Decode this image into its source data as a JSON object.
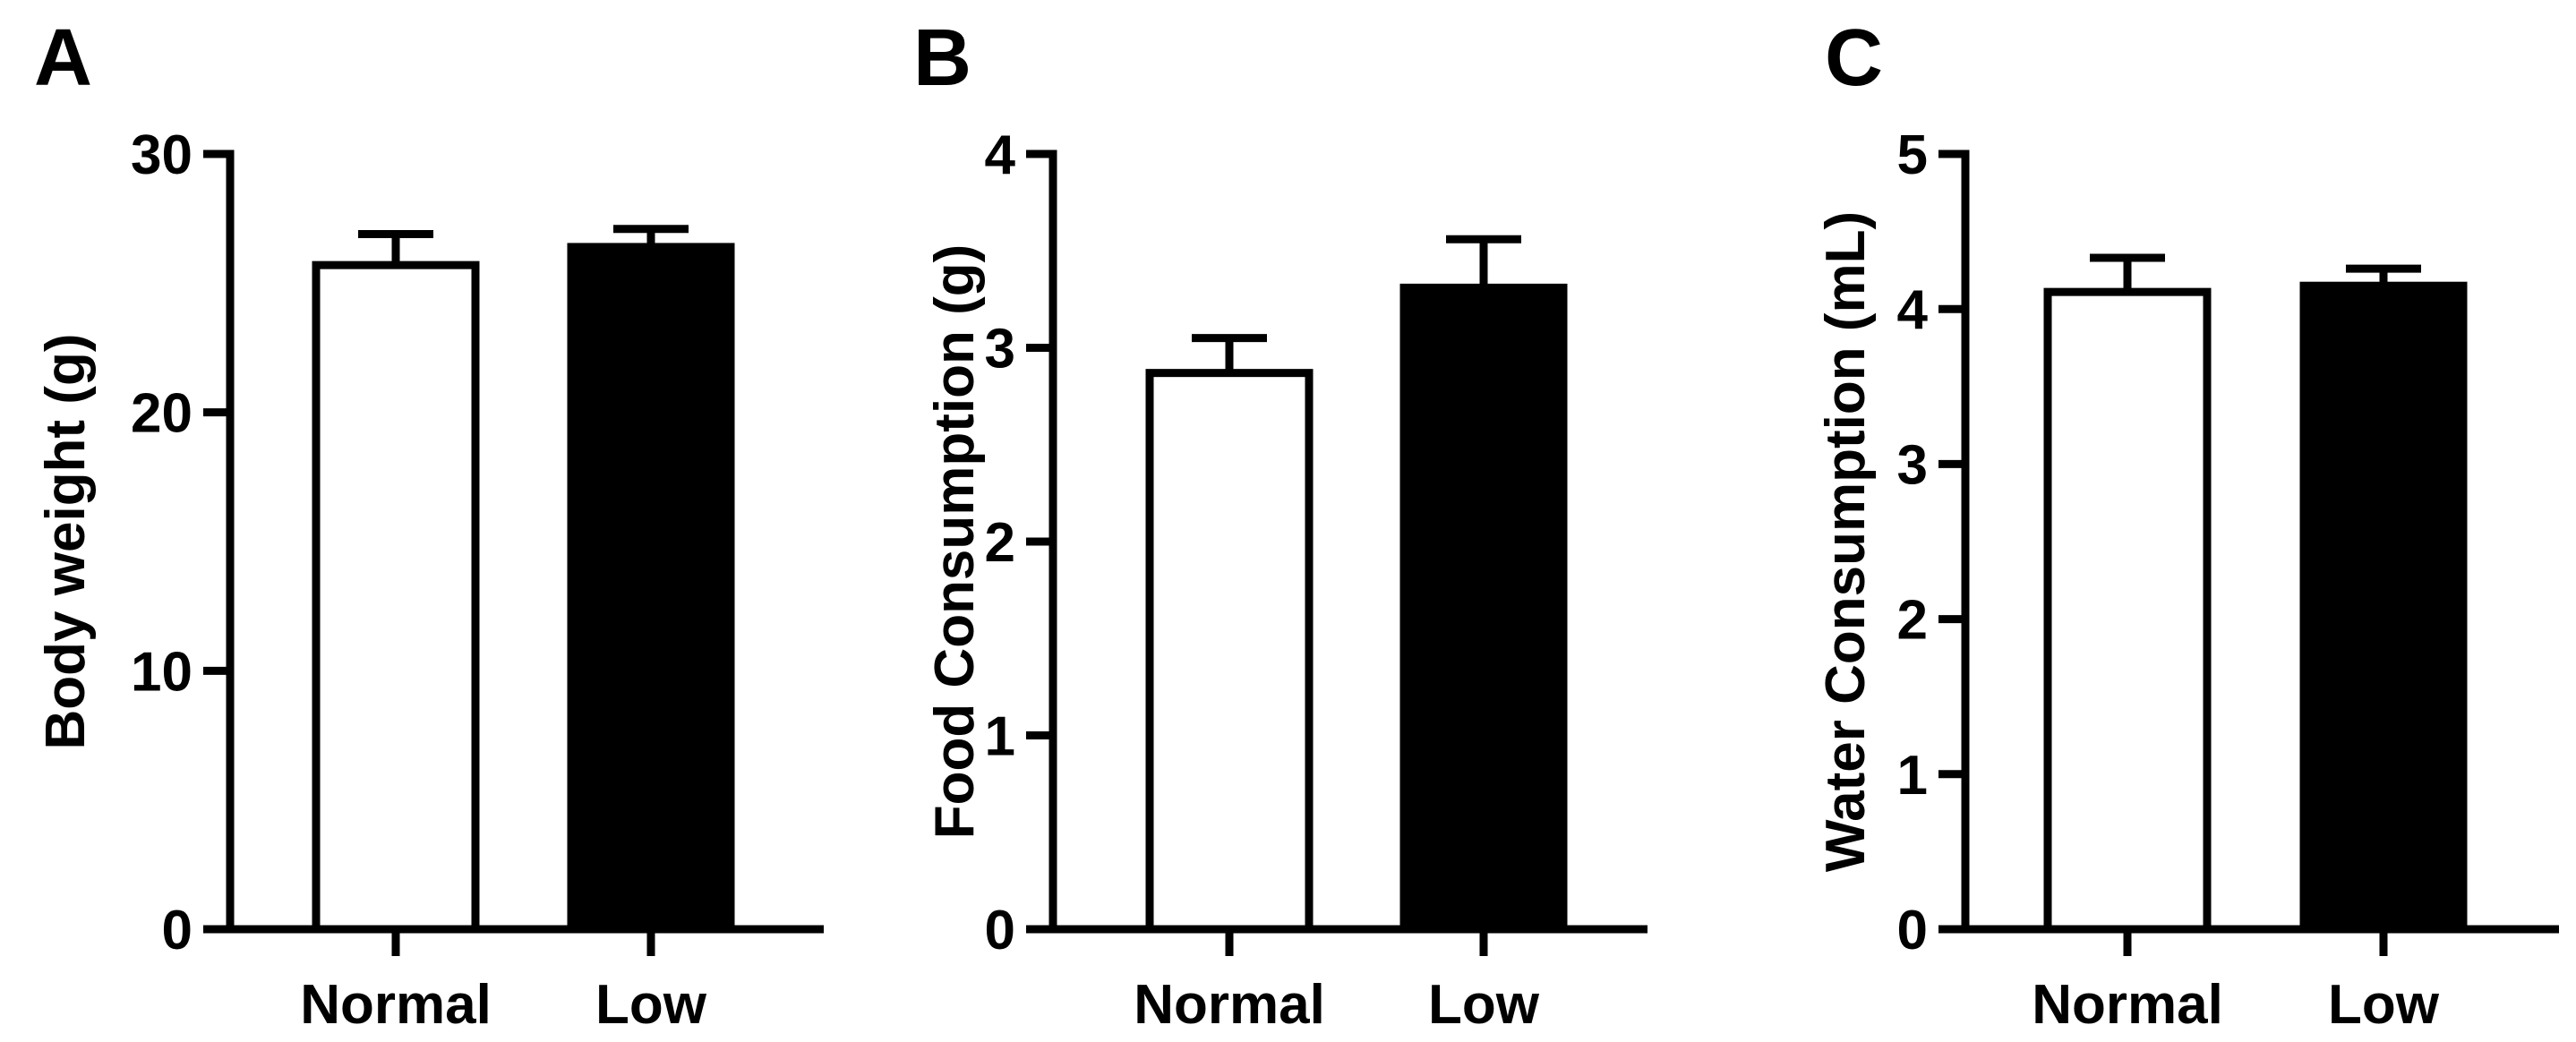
{
  "figure": {
    "background": "#ffffff",
    "ink": "#000000"
  },
  "chart_data": [
    {
      "type": "bar",
      "panel_label": "A",
      "title": "",
      "xlabel": "",
      "ylabel": "Body weight (g)",
      "categories": [
        "Normal",
        "Low"
      ],
      "values": [
        25.7,
        26.4
      ],
      "errors": [
        1.2,
        0.7
      ],
      "bar_fill": [
        "#ffffff",
        "#000000"
      ],
      "ylim": [
        0,
        30
      ],
      "yticks": [
        0,
        10,
        20,
        30
      ],
      "ytick_labels": [
        "0",
        "10",
        "20",
        "30"
      ],
      "grid": false
    },
    {
      "type": "bar",
      "panel_label": "B",
      "title": "",
      "xlabel": "",
      "ylabel": "Food Consumption (g)",
      "categories": [
        "Normal",
        "Low"
      ],
      "values": [
        2.87,
        3.31
      ],
      "errors": [
        0.18,
        0.25
      ],
      "bar_fill": [
        "#ffffff",
        "#000000"
      ],
      "ylim": [
        0,
        4
      ],
      "yticks": [
        0,
        1,
        2,
        3,
        4
      ],
      "ytick_labels": [
        "0",
        "1",
        "2",
        "3",
        "4"
      ],
      "grid": false
    },
    {
      "type": "bar",
      "panel_label": "C",
      "title": "",
      "xlabel": "",
      "ylabel": "Water Consumption (mL)",
      "categories": [
        "Normal",
        "Low"
      ],
      "values": [
        4.11,
        4.15
      ],
      "errors": [
        0.22,
        0.11
      ],
      "bar_fill": [
        "#ffffff",
        "#000000"
      ],
      "ylim": [
        0,
        5
      ],
      "yticks": [
        0,
        1,
        2,
        3,
        4,
        5
      ],
      "ytick_labels": [
        "0",
        "1",
        "2",
        "3",
        "4",
        "5"
      ],
      "grid": false
    }
  ]
}
